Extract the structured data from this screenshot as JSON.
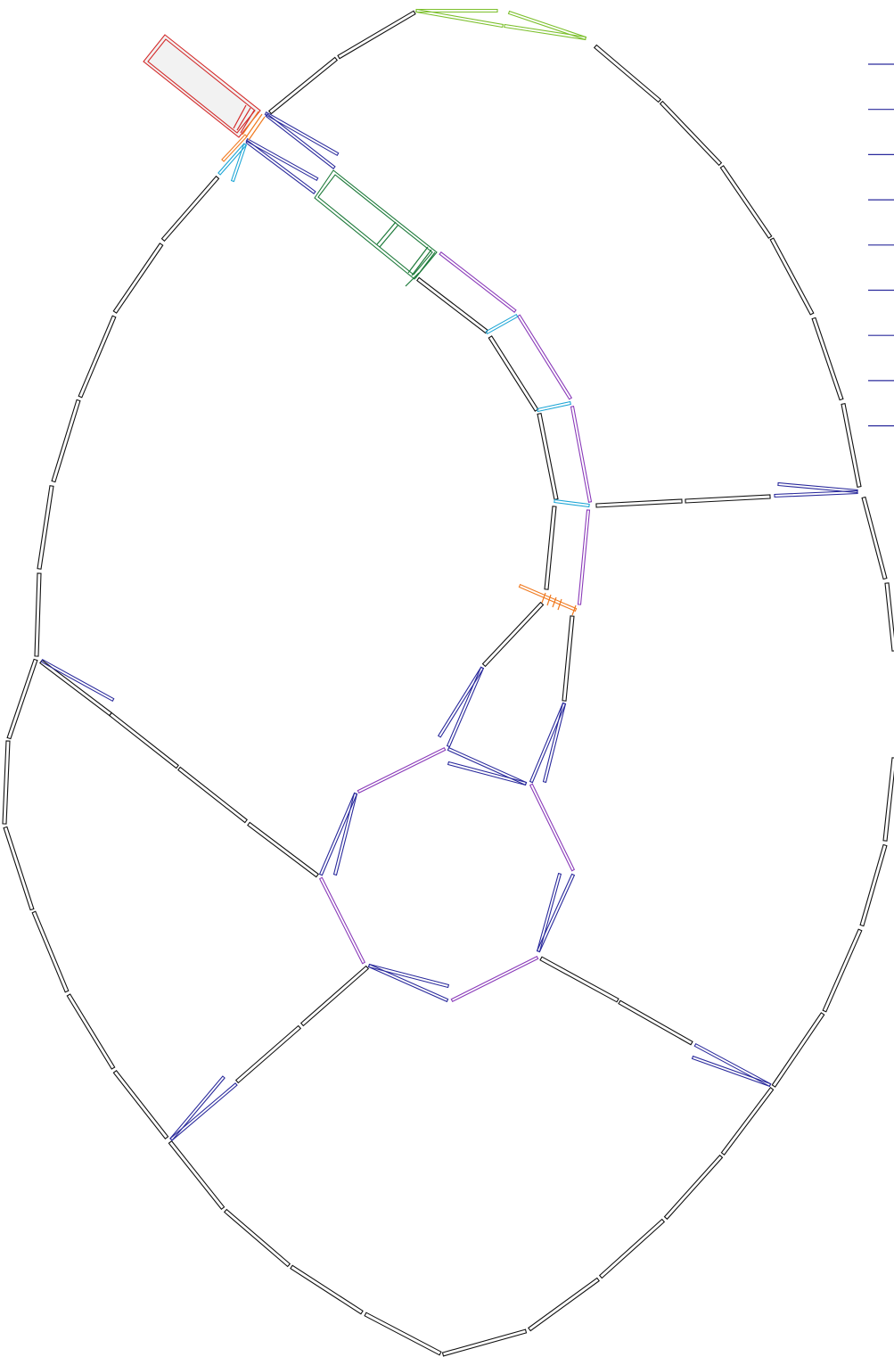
{
  "diagram": {
    "colors": {
      "background": "#ffffff",
      "stroke_default": "#111111",
      "stroke_blue": "#2a2a9c",
      "stroke_purple": "#8a3ab9",
      "stroke_green": "#1d7a3a",
      "stroke_red": "#d42a2a",
      "stroke_orange": "#f07a20",
      "stroke_cyan": "#1ea6d6",
      "stroke_lime": "#7dc02e",
      "stub_fill": "#f2f2f2"
    },
    "right_edge_marker_count": 9
  }
}
